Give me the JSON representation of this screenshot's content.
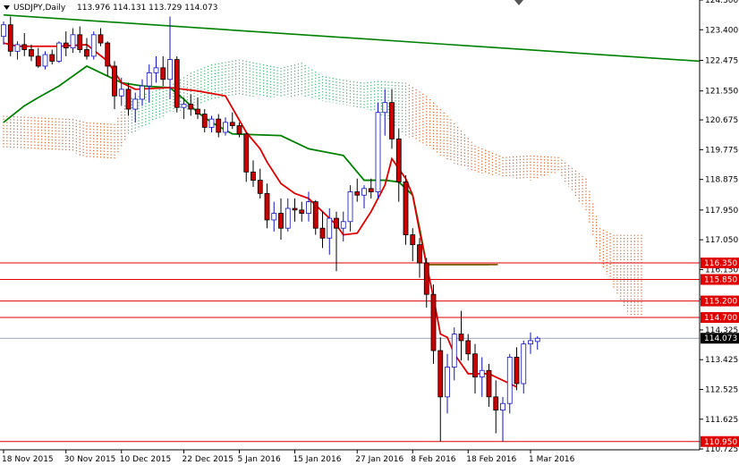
{
  "header": {
    "symbol": "USDJPY,Daily",
    "ohlc": "113.976 114.131 113.729 114.073"
  },
  "colors": {
    "background": "#ffffff",
    "bull_candle": "#ffffff",
    "bull_outline": "#1010c0",
    "bear_candle": "#cc0000",
    "tenkan": "#e00000",
    "kijun": "#008000",
    "trendline": "#008000",
    "cloud_bull": "#3cb371",
    "cloud_bear": "#e06020",
    "level_line": "#e00000",
    "level_label_bg": "#e00000",
    "current_label_bg": "#000000",
    "grid_axis": "#000000"
  },
  "chart_data": {
    "type": "candlestick",
    "title": "USDJPY,Daily",
    "ylim": [
      110.7,
      124.3
    ],
    "y_ticks": [
      "124.300",
      "123.400",
      "122.475",
      "121.550",
      "120.675",
      "119.775",
      "118.875",
      "117.950",
      "117.050",
      "116.150",
      "115.250",
      "114.325",
      "113.425",
      "112.525",
      "111.625",
      "110.725"
    ],
    "x_ticks": [
      "18 Nov 2015",
      "30 Nov 2015",
      "10 Dec 2015",
      "22 Dec 2015",
      "5 Jan 2016",
      "15 Jan 2016",
      "27 Jan 2016",
      "8 Feb 2016",
      "18 Feb 2016",
      "1 Mar 2016"
    ],
    "x_tick_index": [
      0,
      9,
      17,
      26,
      34,
      42,
      51,
      59,
      67,
      76
    ],
    "current_price": "114.073",
    "horizontal_levels": [
      {
        "label": "116.350",
        "value": 116.35
      },
      {
        "label": "115.850",
        "value": 115.85
      },
      {
        "label": "115.200",
        "value": 115.2
      },
      {
        "label": "114.700",
        "value": 114.7
      },
      {
        "label": "110.950",
        "value": 110.95
      }
    ],
    "candles": [
      [
        123.2,
        123.65,
        122.95,
        123.55
      ],
      [
        123.55,
        123.8,
        122.6,
        122.75
      ],
      [
        122.75,
        123.05,
        122.5,
        122.95
      ],
      [
        122.95,
        123.3,
        122.6,
        122.8
      ],
      [
        122.8,
        122.95,
        122.45,
        122.6
      ],
      [
        122.6,
        122.85,
        122.25,
        122.3
      ],
      [
        122.3,
        122.75,
        122.2,
        122.65
      ],
      [
        122.65,
        122.8,
        122.35,
        122.45
      ],
      [
        122.45,
        123.05,
        122.4,
        123.0
      ],
      [
        123.0,
        123.35,
        122.6,
        122.85
      ],
      [
        122.85,
        123.45,
        122.7,
        123.25
      ],
      [
        123.25,
        123.5,
        122.7,
        122.8
      ],
      [
        122.8,
        123.15,
        122.5,
        122.6
      ],
      [
        122.6,
        123.35,
        122.5,
        123.25
      ],
      [
        123.25,
        123.45,
        122.9,
        123.0
      ],
      [
        123.0,
        123.05,
        122.0,
        122.3
      ],
      [
        122.3,
        122.45,
        121.0,
        121.4
      ],
      [
        121.4,
        121.95,
        121.1,
        121.6
      ],
      [
        121.6,
        121.8,
        120.8,
        121.0
      ],
      [
        121.0,
        121.5,
        120.6,
        121.3
      ],
      [
        121.3,
        121.9,
        121.1,
        121.7
      ],
      [
        121.7,
        122.35,
        121.2,
        122.1
      ],
      [
        122.1,
        122.6,
        121.8,
        122.25
      ],
      [
        122.25,
        122.6,
        121.7,
        121.9
      ],
      [
        121.9,
        123.8,
        121.3,
        122.5
      ],
      [
        122.5,
        122.6,
        120.9,
        121.05
      ],
      [
        121.05,
        121.35,
        120.7,
        121.15
      ],
      [
        121.15,
        121.45,
        120.8,
        121.0
      ],
      [
        121.0,
        121.35,
        120.7,
        120.85
      ],
      [
        120.85,
        121.0,
        120.3,
        120.45
      ],
      [
        120.45,
        120.8,
        120.3,
        120.7
      ],
      [
        120.7,
        120.85,
        120.15,
        120.3
      ],
      [
        120.3,
        120.75,
        120.2,
        120.6
      ],
      [
        120.6,
        120.9,
        120.4,
        120.5
      ],
      [
        120.5,
        120.6,
        120.15,
        120.25
      ],
      [
        120.25,
        120.3,
        118.8,
        119.1
      ],
      [
        119.1,
        119.45,
        118.65,
        118.85
      ],
      [
        118.85,
        119.2,
        118.3,
        118.45
      ],
      [
        118.45,
        118.75,
        117.4,
        117.65
      ],
      [
        117.65,
        118.2,
        117.3,
        117.85
      ],
      [
        117.85,
        118.3,
        117.05,
        117.4
      ],
      [
        117.4,
        118.3,
        117.3,
        118.0
      ],
      [
        118.0,
        118.3,
        117.6,
        117.95
      ],
      [
        117.95,
        118.2,
        117.6,
        117.85
      ],
      [
        117.85,
        118.5,
        117.6,
        118.2
      ],
      [
        118.2,
        118.25,
        117.2,
        117.4
      ],
      [
        117.4,
        117.9,
        116.8,
        117.1
      ],
      [
        117.1,
        118.0,
        116.6,
        117.7
      ],
      [
        117.7,
        117.9,
        116.1,
        117.4
      ],
      [
        117.4,
        117.9,
        117.0,
        117.6
      ],
      [
        117.6,
        118.7,
        117.3,
        118.5
      ],
      [
        118.5,
        118.9,
        118.2,
        118.4
      ],
      [
        118.4,
        118.7,
        118.0,
        118.6
      ],
      [
        118.6,
        118.9,
        118.3,
        118.5
      ],
      [
        118.5,
        121.2,
        118.3,
        120.9
      ],
      [
        120.9,
        121.6,
        120.2,
        121.2
      ],
      [
        121.2,
        121.6,
        119.8,
        120.1
      ],
      [
        120.1,
        120.4,
        118.2,
        118.8
      ],
      [
        118.8,
        119.0,
        116.9,
        117.2
      ],
      [
        117.2,
        117.4,
        116.4,
        116.9
      ],
      [
        116.9,
        117.1,
        115.9,
        116.35
      ],
      [
        116.35,
        116.5,
        115.0,
        115.4
      ],
      [
        115.4,
        115.7,
        113.3,
        113.7
      ],
      [
        113.7,
        114.1,
        110.95,
        112.3
      ],
      [
        112.3,
        113.6,
        111.8,
        113.2
      ],
      [
        113.2,
        114.4,
        112.8,
        114.2
      ],
      [
        114.2,
        114.9,
        113.4,
        114.0
      ],
      [
        114.0,
        114.2,
        113.4,
        113.6
      ],
      [
        113.6,
        113.9,
        112.4,
        112.9
      ],
      [
        112.9,
        113.5,
        112.3,
        113.1
      ],
      [
        113.1,
        113.3,
        112.0,
        112.3
      ],
      [
        112.3,
        112.8,
        111.2,
        111.9
      ],
      [
        111.9,
        112.3,
        110.95,
        112.1
      ],
      [
        112.1,
        113.6,
        111.8,
        113.5
      ],
      [
        113.5,
        113.8,
        112.5,
        112.7
      ],
      [
        112.7,
        114.0,
        112.4,
        113.9
      ],
      [
        113.9,
        114.25,
        113.6,
        114.0
      ],
      [
        113.976,
        114.131,
        113.729,
        114.073
      ]
    ],
    "tenkan_points": [
      [
        0,
        123.0
      ],
      [
        2,
        122.9
      ],
      [
        8,
        122.9
      ],
      [
        12,
        122.95
      ],
      [
        15,
        122.45
      ],
      [
        17,
        121.8
      ],
      [
        19,
        121.6
      ],
      [
        24,
        121.65
      ],
      [
        28,
        121.55
      ],
      [
        32,
        121.4
      ],
      [
        35,
        120.3
      ],
      [
        37,
        119.8
      ],
      [
        38,
        119.4
      ],
      [
        40,
        118.75
      ],
      [
        42,
        118.45
      ],
      [
        44,
        118.3
      ],
      [
        46,
        117.9
      ],
      [
        48,
        117.5
      ],
      [
        49,
        117.2
      ],
      [
        51,
        117.25
      ],
      [
        53,
        117.9
      ],
      [
        55,
        118.7
      ],
      [
        56,
        119.5
      ],
      [
        58,
        118.9
      ],
      [
        59,
        118.4
      ],
      [
        60,
        117.3
      ],
      [
        61,
        116.3
      ],
      [
        62,
        115.3
      ],
      [
        63,
        114.2
      ],
      [
        64,
        114.1
      ],
      [
        65,
        113.6
      ],
      [
        67,
        113.0
      ],
      [
        70,
        113.0
      ],
      [
        72,
        112.8
      ],
      [
        74,
        112.6
      ]
    ],
    "kijun_points": [
      [
        0,
        120.6
      ],
      [
        3,
        121.1
      ],
      [
        5,
        121.35
      ],
      [
        8,
        121.7
      ],
      [
        10,
        122.0
      ],
      [
        12,
        122.3
      ],
      [
        15,
        122.0
      ],
      [
        17,
        121.8
      ],
      [
        20,
        121.7
      ],
      [
        24,
        121.65
      ],
      [
        26,
        121.3
      ],
      [
        28,
        120.9
      ],
      [
        30,
        120.6
      ],
      [
        33,
        120.25
      ],
      [
        40,
        120.2
      ],
      [
        44,
        119.8
      ],
      [
        49,
        119.6
      ],
      [
        52,
        118.85
      ],
      [
        55,
        118.85
      ],
      [
        57,
        118.8
      ],
      [
        59,
        118.4
      ],
      [
        60,
        117.4
      ],
      [
        61,
        116.3
      ],
      [
        70,
        116.3
      ]
    ],
    "trendline": [
      [
        0,
        123.85
      ],
      [
        82,
        122.45
      ]
    ],
    "cloud_top": [
      [
        0,
        120.8
      ],
      [
        10,
        120.7
      ],
      [
        12,
        120.6
      ],
      [
        16,
        120.55
      ],
      [
        18,
        121.3
      ],
      [
        24,
        121.7
      ],
      [
        27,
        122.1
      ],
      [
        30,
        122.35
      ],
      [
        34,
        122.5
      ],
      [
        40,
        122.25
      ],
      [
        43,
        122.4
      ],
      [
        46,
        122.0
      ],
      [
        50,
        121.85
      ],
      [
        52,
        121.8
      ],
      [
        54,
        121.85
      ],
      [
        58,
        121.8
      ],
      [
        61,
        121.4
      ],
      [
        64,
        120.8
      ],
      [
        68,
        119.9
      ],
      [
        72,
        119.55
      ],
      [
        76,
        119.6
      ],
      [
        80,
        119.55
      ],
      [
        84,
        118.9
      ],
      [
        86,
        117.4
      ],
      [
        88,
        117.2
      ],
      [
        90,
        117.2
      ],
      [
        92,
        117.2
      ]
    ],
    "cloud_bottom": [
      [
        0,
        119.8
      ],
      [
        10,
        119.7
      ],
      [
        12,
        119.5
      ],
      [
        16,
        119.5
      ],
      [
        18,
        120.2
      ],
      [
        24,
        120.9
      ],
      [
        27,
        121.0
      ],
      [
        30,
        121.3
      ],
      [
        34,
        121.4
      ],
      [
        40,
        121.35
      ],
      [
        43,
        121.4
      ],
      [
        46,
        121.25
      ],
      [
        50,
        121.1
      ],
      [
        52,
        121.0
      ],
      [
        54,
        120.9
      ],
      [
        58,
        120.2
      ],
      [
        61,
        119.9
      ],
      [
        64,
        119.45
      ],
      [
        68,
        119.1
      ],
      [
        72,
        118.95
      ],
      [
        76,
        118.85
      ],
      [
        80,
        119.1
      ],
      [
        84,
        117.9
      ],
      [
        86,
        116.4
      ],
      [
        88,
        115.6
      ],
      [
        90,
        114.8
      ],
      [
        92,
        114.7
      ]
    ],
    "cloud_bull_range": [
      18,
      58
    ],
    "xlabel": "",
    "ylabel": ""
  }
}
